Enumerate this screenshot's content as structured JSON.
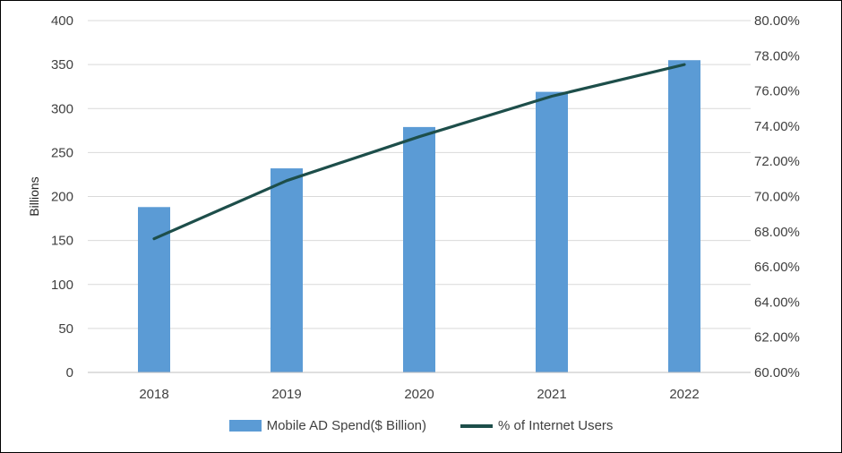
{
  "chart_data": {
    "type": "bar",
    "categories": [
      "2018",
      "2019",
      "2020",
      "2021",
      "2022"
    ],
    "series": [
      {
        "name": "Mobile AD Spend($ Billion)",
        "type": "bar",
        "axis": "left",
        "color": "#5B9BD5",
        "values": [
          188,
          232,
          279,
          319,
          355
        ]
      },
      {
        "name": "% of Internet Users",
        "type": "line",
        "axis": "right",
        "color": "#1D4E4A",
        "values": [
          67.6,
          70.9,
          73.4,
          75.7,
          77.5
        ]
      }
    ],
    "ylabel": "Billions",
    "ylim": [
      0,
      400
    ],
    "yticks": [
      "0",
      "50",
      "100",
      "150",
      "200",
      "250",
      "300",
      "350",
      "400"
    ],
    "y2lim": [
      60,
      80
    ],
    "y2ticks": [
      "60.00%",
      "62.00%",
      "64.00%",
      "66.00%",
      "68.00%",
      "70.00%",
      "72.00%",
      "74.00%",
      "76.00%",
      "78.00%",
      "80.00%"
    ],
    "grid": true,
    "legend_position": "bottom"
  }
}
